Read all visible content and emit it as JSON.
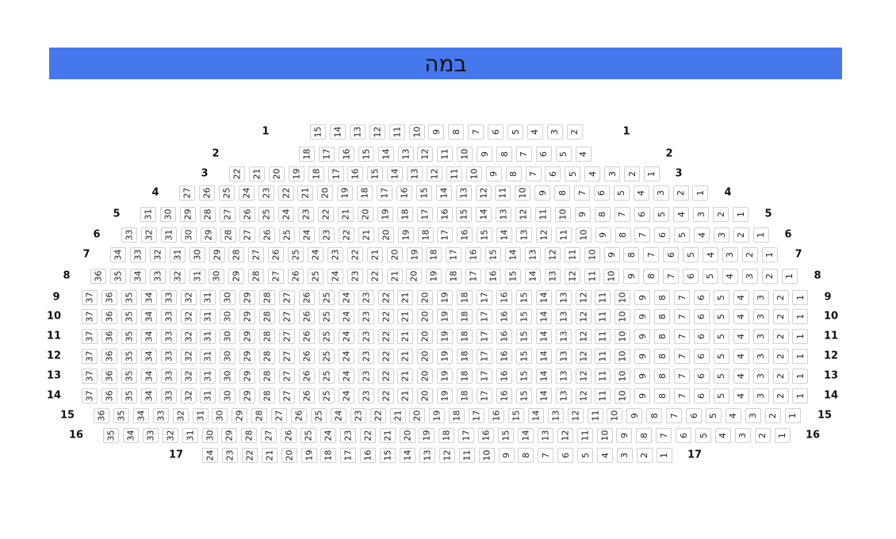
{
  "stage": {
    "label": "במה",
    "color": "#4577ed"
  },
  "seat_border_color": "#d0d0d0",
  "rows": [
    {
      "row": "1",
      "seats": [
        15,
        14,
        13,
        12,
        11,
        10,
        9,
        8,
        7,
        6,
        5,
        4,
        3,
        2
      ]
    },
    {
      "row": "2",
      "seats": [
        18,
        17,
        16,
        15,
        14,
        13,
        12,
        11,
        10,
        9,
        8,
        7,
        6,
        5,
        4
      ]
    },
    {
      "row": "3",
      "seats": [
        22,
        21,
        20,
        19,
        18,
        17,
        16,
        15,
        14,
        13,
        12,
        11,
        10,
        9,
        8,
        7,
        6,
        5,
        4,
        3,
        2,
        1
      ]
    },
    {
      "row": "4",
      "seats": [
        27,
        26,
        25,
        24,
        23,
        22,
        21,
        20,
        19,
        18,
        17,
        16,
        15,
        14,
        13,
        12,
        11,
        10,
        9,
        8,
        7,
        6,
        5,
        4,
        3,
        2,
        1
      ]
    },
    {
      "row": "5",
      "seats": [
        31,
        30,
        29,
        28,
        27,
        26,
        25,
        24,
        23,
        22,
        21,
        20,
        19,
        18,
        17,
        16,
        15,
        14,
        13,
        12,
        11,
        10,
        9,
        8,
        7,
        6,
        5,
        4,
        3,
        2,
        1
      ]
    },
    {
      "row": "6",
      "seats": [
        33,
        32,
        31,
        30,
        29,
        28,
        27,
        26,
        25,
        24,
        23,
        22,
        21,
        20,
        19,
        18,
        17,
        16,
        15,
        14,
        13,
        12,
        11,
        10,
        9,
        8,
        7,
        6,
        5,
        4,
        3,
        2,
        1
      ]
    },
    {
      "row": "7",
      "seats": [
        34,
        33,
        32,
        31,
        30,
        29,
        28,
        27,
        26,
        25,
        24,
        23,
        22,
        21,
        20,
        19,
        18,
        17,
        16,
        15,
        14,
        13,
        12,
        11,
        10,
        9,
        8,
        7,
        6,
        5,
        4,
        3,
        2,
        1
      ]
    },
    {
      "row": "8",
      "seats": [
        36,
        35,
        34,
        33,
        32,
        31,
        30,
        29,
        28,
        27,
        26,
        25,
        24,
        23,
        22,
        21,
        20,
        19,
        18,
        17,
        16,
        15,
        14,
        13,
        12,
        11,
        10,
        9,
        8,
        7,
        6,
        5,
        4,
        3,
        2,
        1
      ]
    },
    {
      "row": "9",
      "seats": [
        37,
        36,
        35,
        34,
        33,
        32,
        31,
        30,
        29,
        28,
        27,
        26,
        25,
        24,
        23,
        22,
        21,
        20,
        19,
        18,
        17,
        16,
        15,
        14,
        13,
        12,
        11,
        10,
        9,
        8,
        7,
        6,
        5,
        4,
        3,
        2,
        1
      ]
    },
    {
      "row": "10",
      "seats": [
        37,
        36,
        35,
        34,
        33,
        32,
        31,
        30,
        29,
        28,
        27,
        26,
        25,
        24,
        23,
        22,
        21,
        20,
        19,
        18,
        17,
        16,
        15,
        14,
        13,
        12,
        11,
        10,
        9,
        8,
        7,
        6,
        5,
        4,
        3,
        2,
        1
      ]
    },
    {
      "row": "11",
      "seats": [
        37,
        36,
        35,
        34,
        33,
        32,
        31,
        30,
        29,
        28,
        27,
        26,
        25,
        24,
        23,
        22,
        21,
        20,
        19,
        18,
        17,
        16,
        15,
        14,
        13,
        12,
        11,
        10,
        9,
        8,
        7,
        6,
        5,
        4,
        3,
        2,
        1
      ]
    },
    {
      "row": "12",
      "seats": [
        37,
        36,
        35,
        34,
        33,
        32,
        31,
        30,
        29,
        28,
        27,
        26,
        25,
        24,
        23,
        22,
        21,
        20,
        19,
        18,
        17,
        16,
        15,
        14,
        13,
        12,
        11,
        10,
        9,
        8,
        7,
        6,
        5,
        4,
        3,
        2,
        1
      ]
    },
    {
      "row": "13",
      "seats": [
        37,
        36,
        35,
        34,
        33,
        32,
        31,
        30,
        29,
        28,
        27,
        26,
        25,
        24,
        23,
        22,
        21,
        20,
        19,
        18,
        17,
        16,
        15,
        14,
        13,
        12,
        11,
        10,
        9,
        8,
        7,
        6,
        5,
        4,
        3,
        2,
        1
      ]
    },
    {
      "row": "14",
      "seats": [
        37,
        36,
        35,
        34,
        33,
        32,
        31,
        30,
        29,
        28,
        27,
        26,
        25,
        24,
        23,
        22,
        21,
        20,
        19,
        18,
        17,
        16,
        15,
        14,
        13,
        12,
        11,
        10,
        9,
        8,
        7,
        6,
        5,
        4,
        3,
        2,
        1
      ]
    },
    {
      "row": "15",
      "seats": [
        36,
        35,
        34,
        33,
        32,
        31,
        30,
        29,
        28,
        27,
        26,
        25,
        24,
        23,
        22,
        21,
        20,
        19,
        18,
        17,
        16,
        15,
        14,
        13,
        12,
        11,
        10,
        9,
        8,
        7,
        6,
        5,
        4,
        3,
        2,
        1
      ]
    },
    {
      "row": "16",
      "seats": [
        35,
        34,
        33,
        32,
        31,
        30,
        29,
        28,
        27,
        26,
        25,
        24,
        23,
        22,
        21,
        20,
        19,
        18,
        17,
        16,
        15,
        14,
        13,
        12,
        11,
        10,
        9,
        8,
        7,
        6,
        5,
        4,
        3,
        2,
        1
      ]
    },
    {
      "row": "17",
      "seats": [
        24,
        23,
        22,
        21,
        20,
        19,
        18,
        17,
        16,
        15,
        14,
        13,
        12,
        11,
        10,
        9,
        8,
        7,
        6,
        5,
        4,
        3,
        2,
        1
      ]
    }
  ]
}
